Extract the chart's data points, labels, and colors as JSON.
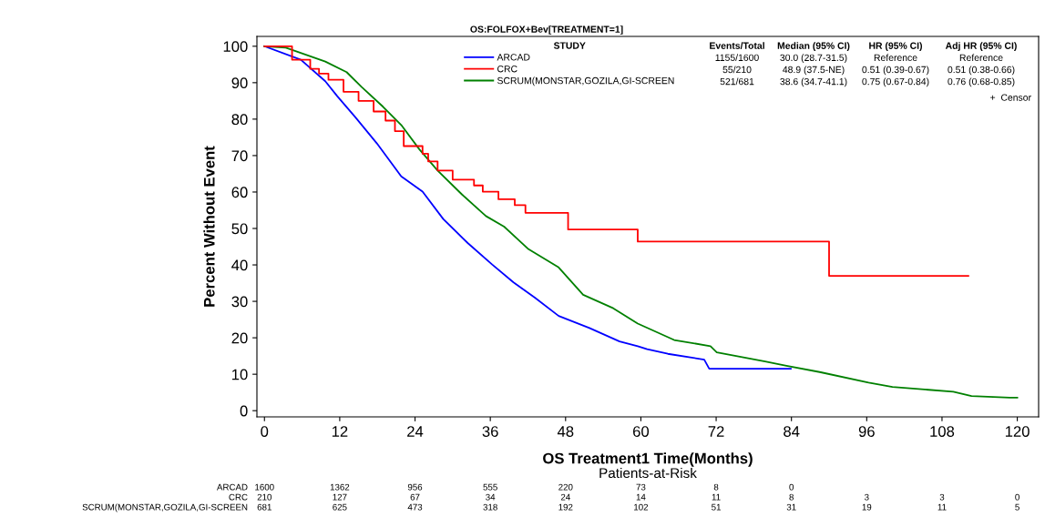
{
  "chart_data": {
    "type": "line",
    "title": "OS:FOLFOX+Bev[TREATMENT=1]",
    "xlabel": "OS Treatment1 Time(Months)",
    "ylabel": "Percent Without Event",
    "xlim": [
      -1.2,
      123.4
    ],
    "ylim": [
      -1.7,
      102.7
    ],
    "xticks": [
      0,
      12,
      24,
      36,
      48,
      60,
      72,
      84,
      96,
      108,
      120
    ],
    "yticks": [
      0,
      10,
      20,
      30,
      40,
      50,
      60,
      70,
      80,
      90,
      100
    ],
    "grid": false,
    "legend": "top",
    "legend_title": "STUDY",
    "marker": "none",
    "line_style": "solid",
    "series": [
      {
        "name": "ARCAD",
        "color": "#0000ff",
        "x": [
          0,
          5.8,
          9.7,
          11.6,
          14.5,
          17.9,
          21.8,
          25.2,
          28.5,
          32.4,
          36.3,
          39.7,
          43.1,
          46.9,
          51.8,
          56.6,
          59.5,
          61.0,
          64.3,
          70.1,
          70.9,
          83.9
        ],
        "values": [
          100,
          96.3,
          90.4,
          86.3,
          80.5,
          73.4,
          64.3,
          60.1,
          52.6,
          46.0,
          40.1,
          35.2,
          31.0,
          26.0,
          22.7,
          19.0,
          17.7,
          16.9,
          15.6,
          14.0,
          11.5,
          11.5
        ]
      },
      {
        "name": "CRC",
        "color": "#ff0000",
        "type": "step",
        "x": [
          0,
          4.4,
          7.3,
          8.7,
          10.2,
          12.6,
          15.0,
          17.4,
          19.3,
          20.8,
          22.2,
          25.2,
          26.1,
          27.6,
          30.0,
          33.4,
          34.8,
          37.3,
          39.9,
          41.6,
          48.4,
          59.5,
          90.0,
          112.2
        ],
        "values": [
          100,
          96.3,
          93.8,
          92.5,
          90.8,
          87.5,
          85.0,
          82.1,
          79.6,
          76.7,
          72.6,
          70.5,
          68.4,
          65.9,
          63.4,
          61.8,
          60.1,
          58.0,
          56.4,
          54.3,
          49.7,
          46.4,
          37.0,
          37.0
        ]
      },
      {
        "name": "SCRUM(MONSTAR,GOZILA,GI-SCREEN",
        "color": "#008000",
        "x": [
          0,
          3.4,
          9.7,
          13.1,
          15.5,
          18.9,
          21.8,
          24.7,
          27.6,
          31.5,
          35.3,
          38.2,
          42.1,
          46.9,
          50.8,
          55.6,
          59.5,
          65.3,
          71.1,
          72.1,
          79.8,
          83.2,
          88.5,
          96.3,
          100.1,
          109.8,
          112.7,
          118.8,
          120
        ],
        "values": [
          100,
          99.6,
          95.8,
          92.9,
          88.8,
          83.4,
          78.4,
          71.7,
          65.9,
          59.3,
          53.4,
          50.5,
          44.3,
          39.3,
          31.8,
          28.1,
          23.9,
          19.4,
          17.7,
          16.0,
          13.5,
          12.3,
          10.6,
          7.7,
          6.5,
          5.2,
          4.0,
          3.6,
          3.6
        ]
      }
    ],
    "annotations": [
      "Events/Total",
      "Median (95% CI)",
      "HR (95% CI)",
      "Adj HR (95% CI)",
      "1155/1600",
      "30.0 (28.7-31.5)",
      "Reference",
      "Reference",
      "55/210",
      "48.9 (37.5-NE)",
      "0.51 (0.39-0.67)",
      "0.51 (0.38-0.66)",
      "521/681",
      "38.6 (34.7-41.1)",
      "0.75 (0.67-0.84)",
      "0.76 (0.68-0.85)",
      "+  Censor",
      "Patients-at-Risk",
      "ARCAD",
      "1600 1362 956 555 220 73 8 0",
      "CRC",
      "210 127 67 34 24 14 11 8 3 3 0",
      "SCRUM(MONSTAR,GOZILA,GI-SCREEN",
      "681 625 473 318 192 102 51 31 19 11 5"
    ]
  }
}
